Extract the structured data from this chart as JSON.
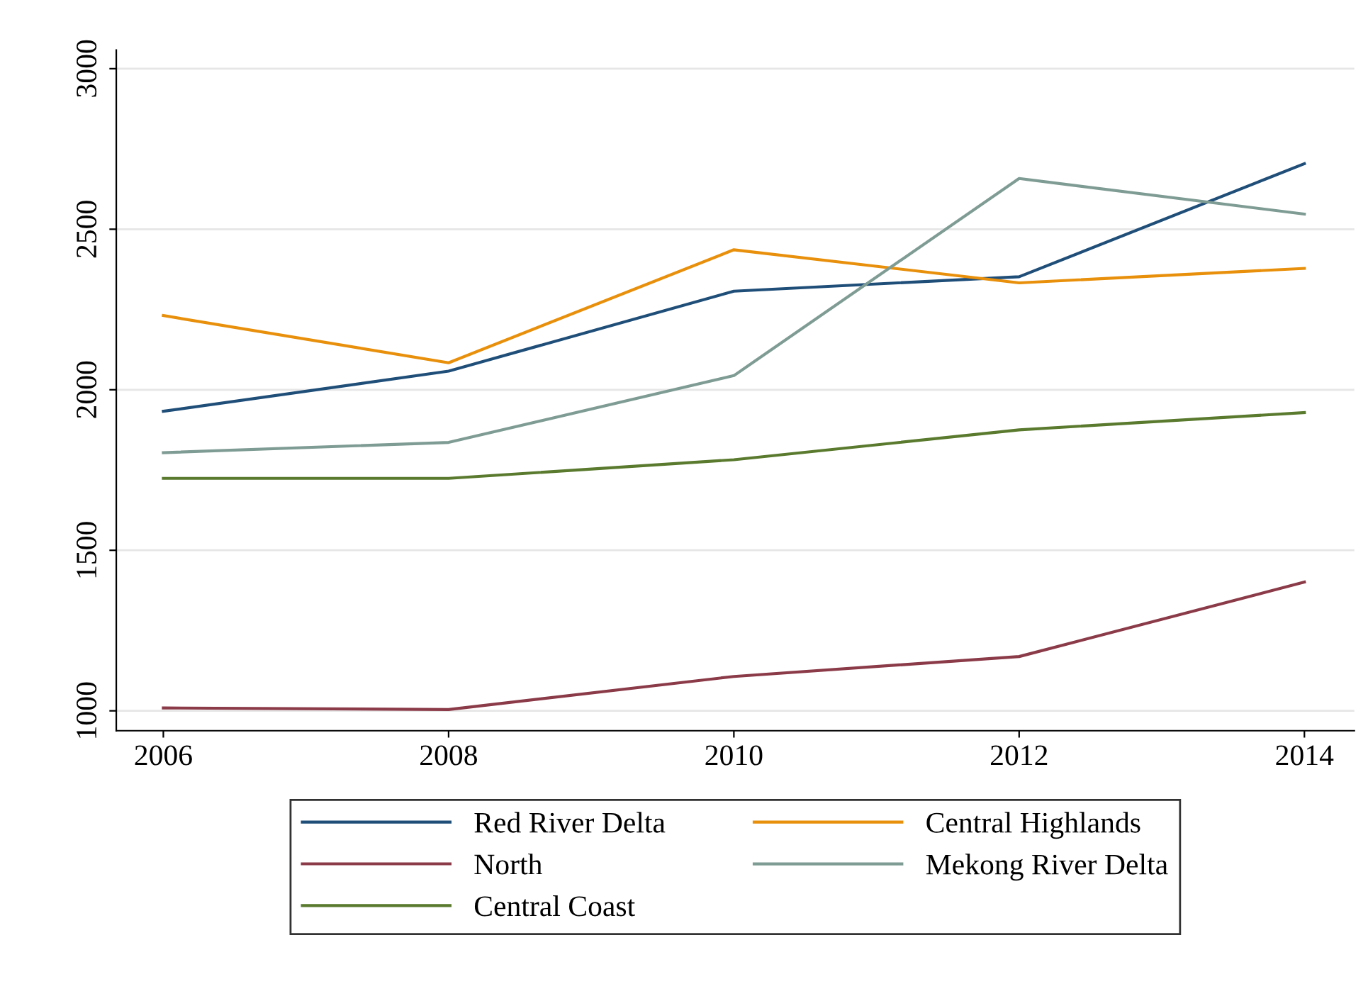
{
  "chart_data": {
    "type": "line",
    "x": [
      2006,
      2008,
      2010,
      2012,
      2014
    ],
    "series": [
      {
        "name": "Red River Delta",
        "color": "#1f4e79",
        "values": [
          1933,
          2058,
          2307,
          2352,
          2704
        ]
      },
      {
        "name": "North",
        "color": "#8b3a48",
        "values": [
          1009,
          1004,
          1107,
          1169,
          1401
        ]
      },
      {
        "name": "Central Coast",
        "color": "#5a7a2e",
        "values": [
          1724,
          1724,
          1782,
          1875,
          1929
        ]
      },
      {
        "name": "Central Highlands",
        "color": "#e8900c",
        "values": [
          2231,
          2084,
          2436,
          2333,
          2378
        ]
      },
      {
        "name": "Mekong River Delta",
        "color": "#7f9c94",
        "values": [
          1804,
          1836,
          2044,
          2658,
          2547
        ]
      }
    ],
    "xlim": [
      2005.67,
      2014.35
    ],
    "xticks": [
      2006,
      2008,
      2010,
      2012,
      2014
    ],
    "ylim": [
      938,
      3058
    ],
    "yticks": [
      1000,
      1500,
      2000,
      2500,
      3000
    ],
    "grid": "y",
    "legend": "bottom",
    "marker": "none",
    "line_style": "solid"
  }
}
